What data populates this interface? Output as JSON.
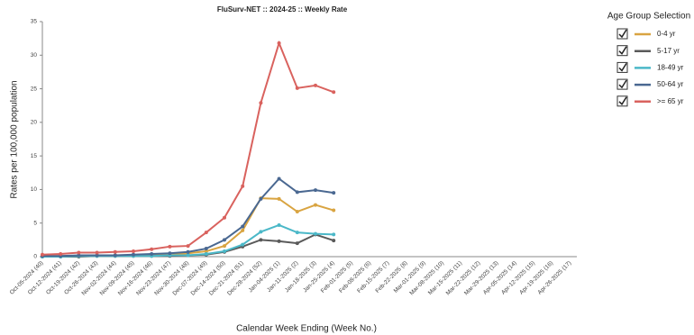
{
  "chart_data": {
    "type": "line",
    "title": "FluSurv-NET :: 2024-25 :: Weekly Rate",
    "x_label": "Calendar Week Ending (Week No.)",
    "y_label": "Rates per 100,000 population",
    "legend_title": "Age Group Selection",
    "categories": [
      "Oct-05-2024 (40)",
      "Oct-12-2024 (41)",
      "Oct-19-2024 (42)",
      "Oct-26-2024 (43)",
      "Nov-02-2024 (44)",
      "Nov-09-2024 (45)",
      "Nov-16-2024 (46)",
      "Nov-23-2024 (47)",
      "Nov-30-2024 (48)",
      "Dec-07-2024 (49)",
      "Dec-14-2024 (50)",
      "Dec-21-2024 (51)",
      "Dec-28-2024 (52)",
      "Jan-04-2025 (1)",
      "Jan-11-2025 (2)",
      "Jan-18-2025 (3)",
      "Jan-25-2025 (4)",
      "Feb-01-2025 (5)",
      "Feb-08-2025 (6)",
      "Feb-15-2025 (7)",
      "Feb-22-2025 (8)",
      "Mar-01-2025 (9)",
      "Mar-08-2025 (10)",
      "Mar-15-2025 (11)",
      "Mar-22-2025 (12)",
      "Mar-29-2025 (13)",
      "Apr-05-2025 (14)",
      "Apr-12-2025 (15)",
      "Apr-19-2025 (16)",
      "Apr-26-2025 (17)"
    ],
    "series": [
      {
        "name": "0-4 yr",
        "color": "#d9a441",
        "values": [
          0.1,
          0.1,
          0.1,
          0.2,
          0.2,
          0.2,
          0.3,
          0.3,
          0.5,
          0.8,
          1.6,
          3.9,
          8.7,
          8.6,
          6.7,
          7.7,
          6.9,
          null,
          null,
          null,
          null,
          null,
          null,
          null,
          null,
          null,
          null,
          null,
          null,
          null
        ]
      },
      {
        "name": "5-17 yr",
        "color": "#5a5a5a",
        "values": [
          0,
          0,
          0,
          0.1,
          0.1,
          0.1,
          0.1,
          0.1,
          0.2,
          0.3,
          0.7,
          1.5,
          2.5,
          2.3,
          2.0,
          3.3,
          2.4,
          null,
          null,
          null,
          null,
          null,
          null,
          null,
          null,
          null,
          null,
          null,
          null,
          null
        ]
      },
      {
        "name": "18-49 yr",
        "color": "#4bb8c8",
        "values": [
          0,
          0,
          0.1,
          0.1,
          0.1,
          0.1,
          0.1,
          0.2,
          0.2,
          0.4,
          0.8,
          1.8,
          3.7,
          4.7,
          3.6,
          3.4,
          3.3,
          null,
          null,
          null,
          null,
          null,
          null,
          null,
          null,
          null,
          null,
          null,
          null,
          null
        ]
      },
      {
        "name": "50-64 yr",
        "color": "#4a6891",
        "values": [
          0.1,
          0.1,
          0.2,
          0.2,
          0.2,
          0.3,
          0.4,
          0.5,
          0.7,
          1.2,
          2.5,
          4.5,
          8.6,
          11.6,
          9.6,
          9.9,
          9.5,
          null,
          null,
          null,
          null,
          null,
          null,
          null,
          null,
          null,
          null,
          null,
          null,
          null
        ]
      },
      {
        "name": ">= 65 yr",
        "color": "#d9625e",
        "values": [
          0.3,
          0.4,
          0.6,
          0.6,
          0.7,
          0.8,
          1.1,
          1.5,
          1.6,
          3.6,
          5.8,
          10.5,
          22.9,
          31.8,
          25.1,
          25.5,
          24.5,
          null,
          null,
          null,
          null,
          null,
          null,
          null,
          null,
          null,
          null,
          null,
          null,
          null
        ]
      }
    ],
    "ylim": [
      0,
      35
    ],
    "yticks": [
      0,
      5,
      10,
      15,
      20,
      25,
      30,
      35
    ],
    "grid": false
  }
}
